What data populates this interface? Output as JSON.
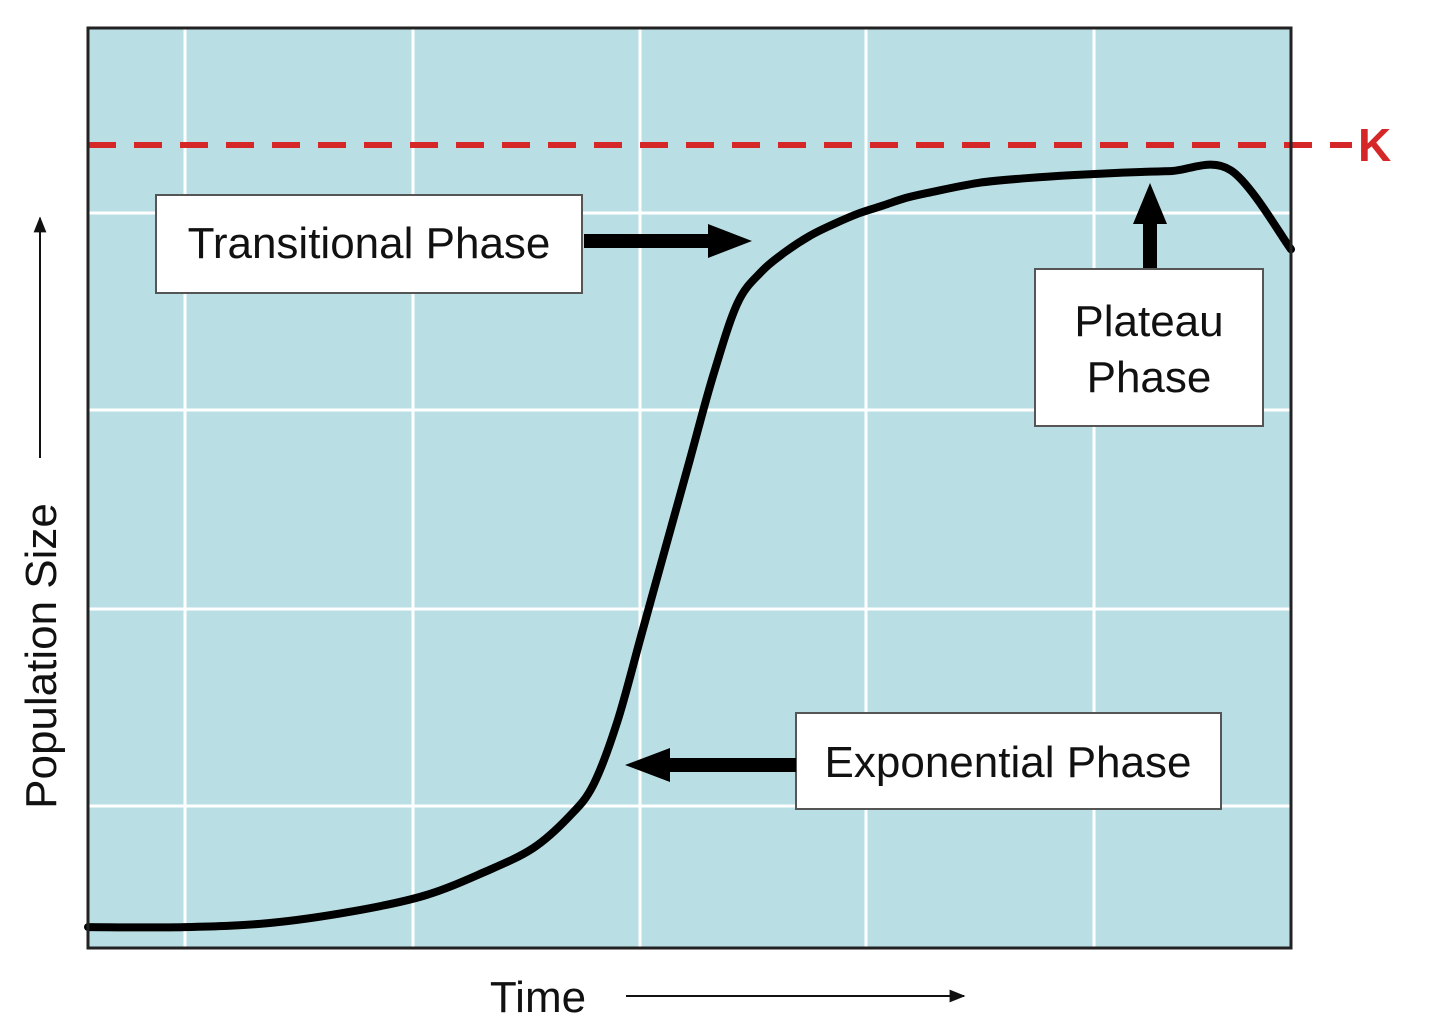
{
  "chart_data": {
    "type": "line",
    "title": "",
    "xlabel": "Time",
    "ylabel": "Population Size",
    "xlim": [
      0,
      100
    ],
    "ylim": [
      0,
      100
    ],
    "grid": true,
    "series": [
      {
        "x": [
          0,
          8,
          15,
          22,
          28,
          33,
          37,
          40,
          42,
          44,
          46,
          48,
          50,
          52,
          54,
          56,
          58,
          60,
          62,
          64,
          66,
          68,
          70,
          74,
          78,
          82,
          86,
          90,
          95,
          100
        ],
        "y": [
          1,
          1,
          1.5,
          3,
          5,
          8,
          11,
          15,
          19,
          27,
          38,
          49,
          60,
          71,
          80,
          84,
          86.5,
          88.5,
          90,
          91.3,
          92.3,
          93.3,
          94,
          95.2,
          95.8,
          96.2,
          96.5,
          96.7,
          96.8,
          86.8
        ]
      }
    ],
    "reference_line": {
      "label": "K",
      "y": 100,
      "style": "dashed",
      "color": "#d62728"
    },
    "annotations": [
      {
        "name": "transitional",
        "lines": [
          "Transitional Phase"
        ],
        "arrow_direction": "right"
      },
      {
        "name": "plateau",
        "lines": [
          "Plateau",
          "Phase"
        ],
        "arrow_direction": "up"
      },
      {
        "name": "exponential",
        "lines": [
          "Exponential Phase"
        ],
        "arrow_direction": "left"
      }
    ]
  },
  "colors": {
    "plot_background": "#b9dfe5",
    "grid": "#ffffff",
    "curve": "#000000",
    "k_line": "#d62728",
    "frame": "#222222"
  }
}
